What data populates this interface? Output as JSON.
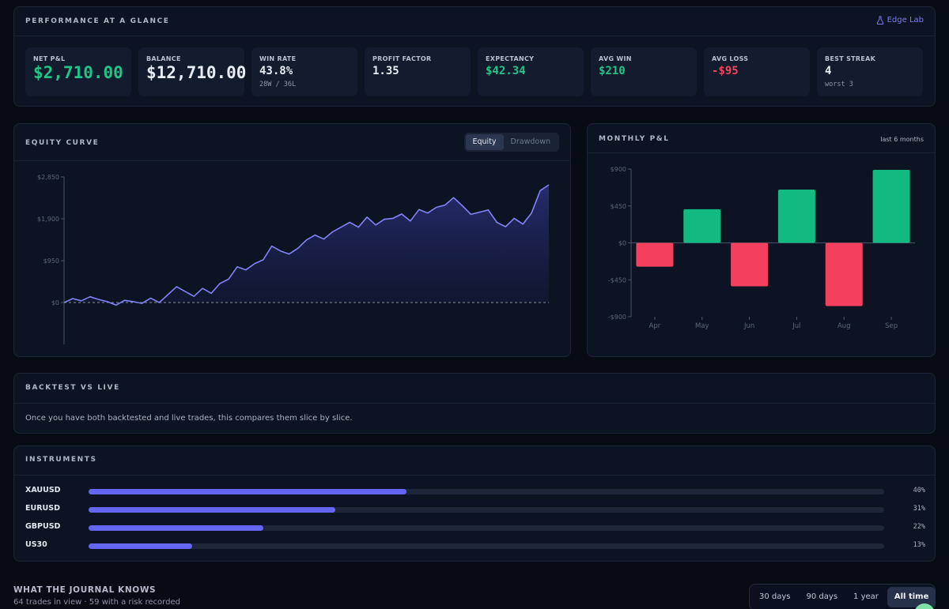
{
  "performance": {
    "title": "PERFORMANCE AT A GLANCE",
    "link_label": "Edge Lab",
    "link_icon": "flask-icon",
    "stats": [
      {
        "label": "NET P&L",
        "value": "$2,710.00",
        "tone": "green",
        "big": true
      },
      {
        "label": "BALANCE",
        "value": "$12,710.00",
        "tone": "white",
        "big": true
      },
      {
        "label": "WIN RATE",
        "value": "43.8%",
        "sub": "28W / 36L",
        "tone": "white"
      },
      {
        "label": "PROFIT FACTOR",
        "value": "1.35",
        "tone": "white"
      },
      {
        "label": "EXPECTANCY",
        "value": "$42.34",
        "tone": "green"
      },
      {
        "label": "AVG WIN",
        "value": "$210",
        "tone": "green"
      },
      {
        "label": "AVG LOSS",
        "value": "-$95",
        "tone": "red"
      },
      {
        "label": "BEST STREAK",
        "value": "4",
        "sub": "worst 3",
        "tone": "white"
      }
    ]
  },
  "equity": {
    "title": "EQUITY CURVE",
    "toggle": [
      {
        "label": "Equity",
        "active": true
      },
      {
        "label": "Drawdown",
        "active": false
      }
    ],
    "chart_data": {
      "type": "line",
      "y_ticks": [
        "$2,850",
        "$1,900",
        "$950",
        "$0"
      ],
      "ylim": [
        -950,
        2850
      ],
      "line_color": "#8084f4",
      "values": [
        0,
        90,
        40,
        130,
        70,
        20,
        -60,
        50,
        20,
        -20,
        100,
        0,
        180,
        360,
        250,
        140,
        320,
        210,
        430,
        530,
        810,
        740,
        880,
        970,
        1280,
        1170,
        1100,
        1230,
        1420,
        1530,
        1440,
        1600,
        1710,
        1820,
        1710,
        1940,
        1760,
        1890,
        1910,
        2010,
        1850,
        2110,
        2030,
        2160,
        2210,
        2380,
        2200,
        2000,
        2050,
        2100,
        1820,
        1720,
        1910,
        1780,
        2030,
        2540,
        2670
      ]
    }
  },
  "monthly": {
    "title": "MONTHLY P&L",
    "range_label": "last 6 months",
    "chart_data": {
      "type": "bar",
      "y_ticks": [
        "$900",
        "$450",
        "$0",
        "-$450",
        "-$900"
      ],
      "ylim": [
        -900,
        900
      ],
      "categories": [
        "Apr",
        "May",
        "Jun",
        "Jul",
        "Aug",
        "Sep"
      ],
      "values": [
        -290,
        410,
        -530,
        650,
        -770,
        890
      ],
      "pos_color": "#12b981",
      "neg_color": "#f43f5e"
    }
  },
  "backtest": {
    "title": "BACKTEST VS LIVE",
    "message": "Once you have both backtested and live trades, this compares them slice by slice."
  },
  "instruments": {
    "title": "INSTRUMENTS",
    "items": [
      {
        "name": "XAUUSD",
        "pct_label": "40%",
        "fraction": 0.4
      },
      {
        "name": "EURUSD",
        "pct_label": "31%",
        "fraction": 0.31
      },
      {
        "name": "GBPUSD",
        "pct_label": "22%",
        "fraction": 0.22
      },
      {
        "name": "US30",
        "pct_label": "13%",
        "fraction": 0.13
      }
    ]
  },
  "journal": {
    "title": "WHAT THE JOURNAL KNOWS",
    "subtitle": "64 trades in view · 59 with a risk recorded"
  },
  "range": [
    {
      "label": "30 days",
      "active": false
    },
    {
      "label": "90 days",
      "active": false
    },
    {
      "label": "1 year",
      "active": false
    },
    {
      "label": "All time",
      "active": true
    }
  ]
}
